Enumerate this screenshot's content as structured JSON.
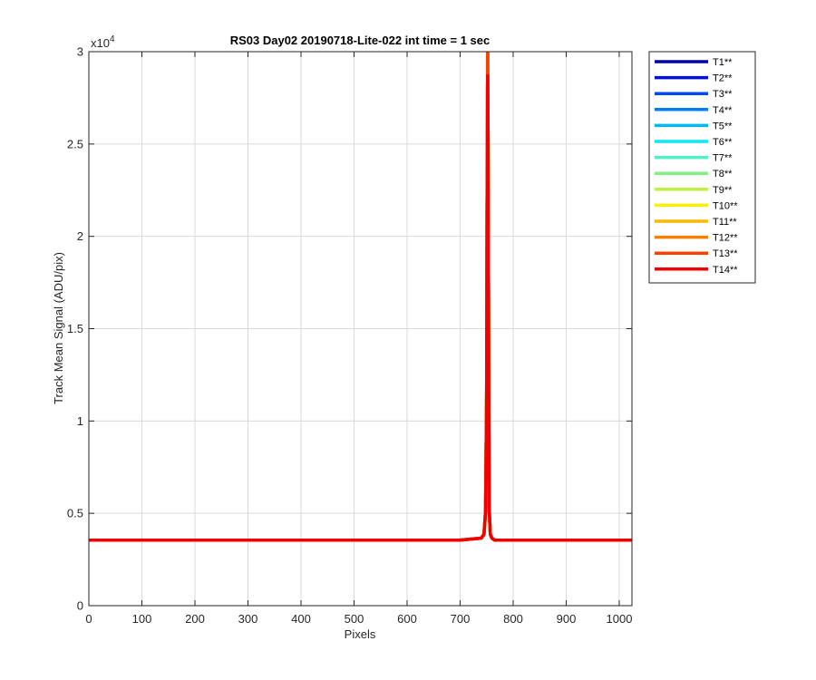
{
  "chart_data": {
    "type": "line",
    "title": "RS03 Day02 20190718-Lite-022 int time = 1 sec",
    "xlabel": "Pixels",
    "ylabel": "Track Mean Signal (ADU/pix)",
    "y_exponent_label": "x10",
    "y_exponent": "4",
    "xlim": [
      0,
      1024
    ],
    "ylim": [
      0,
      30000
    ],
    "xticks": [
      0,
      100,
      200,
      300,
      400,
      500,
      600,
      700,
      800,
      900,
      1000
    ],
    "xtick_labels": [
      "0",
      "100",
      "200",
      "300",
      "400",
      "500",
      "600",
      "700",
      "800",
      "900",
      "1000"
    ],
    "yticks": [
      0,
      5000,
      10000,
      15000,
      20000,
      25000,
      30000
    ],
    "ytick_labels": [
      "0",
      "0.5",
      "1",
      "1.5",
      "2",
      "2.5",
      "3"
    ],
    "grid": true,
    "legend_position": "outside-right-top",
    "baseline": 3550,
    "x": [
      0,
      700,
      740,
      745,
      748,
      750,
      751,
      752,
      753,
      754,
      755,
      757,
      760,
      765,
      1024
    ],
    "series": [
      {
        "name": "T1**",
        "color": "#0000a0",
        "peak": 30000
      },
      {
        "name": "T2**",
        "color": "#0010d8",
        "peak": 30000
      },
      {
        "name": "T3**",
        "color": "#0048f0",
        "peak": 30000
      },
      {
        "name": "T4**",
        "color": "#0080f0",
        "peak": 30000
      },
      {
        "name": "T5**",
        "color": "#00b8f0",
        "peak": 30000
      },
      {
        "name": "T6**",
        "color": "#10e8f0",
        "peak": 30000
      },
      {
        "name": "T7**",
        "color": "#50f0c8",
        "peak": 30000
      },
      {
        "name": "T8**",
        "color": "#80f080",
        "peak": 30000
      },
      {
        "name": "T9**",
        "color": "#c0f040",
        "peak": 30000
      },
      {
        "name": "T10**",
        "color": "#f8f000",
        "peak": 30000
      },
      {
        "name": "T11**",
        "color": "#f8b800",
        "peak": 30000
      },
      {
        "name": "T12**",
        "color": "#f88000",
        "peak": 30000
      },
      {
        "name": "T13**",
        "color": "#f84000",
        "peak": 30000
      },
      {
        "name": "T14**",
        "color": "#f00000",
        "peak": 28700
      }
    ],
    "peak_profile": [
      0,
      0,
      0.004,
      0.012,
      0.06,
      0.3,
      0.75,
      1.0,
      0.75,
      0.3,
      0.06,
      0.012,
      0.004,
      0,
      0
    ]
  }
}
